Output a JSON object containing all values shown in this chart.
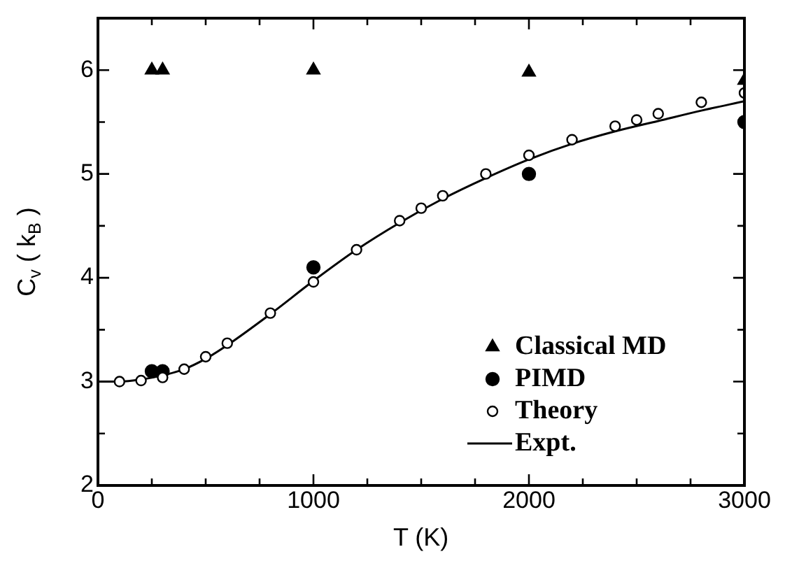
{
  "chart_data": {
    "type": "scatter",
    "xlabel": "T (K)",
    "ylabel": "C$_{v}$ ( k$_{B}$ )",
    "xlim": [
      0,
      3000
    ],
    "ylim": [
      2,
      6.5
    ],
    "xticks": [
      0,
      {
        "value": 250,
        "label": null
      },
      {
        "value": 500,
        "label": null
      },
      {
        "value": 750,
        "label": null
      },
      1000,
      {
        "value": 1250,
        "label": null
      },
      {
        "value": 1500,
        "label": null
      },
      {
        "value": 1750,
        "label": null
      },
      2000,
      {
        "value": 2250,
        "label": null
      },
      {
        "value": 2500,
        "label": null
      },
      {
        "value": 2750,
        "label": null
      },
      3000
    ],
    "yticks": [
      2,
      {
        "value": 2.5,
        "label": null
      },
      3,
      {
        "value": 3.5,
        "label": null
      },
      4,
      {
        "value": 4.5,
        "label": null
      },
      5,
      {
        "value": 5.5,
        "label": null
      },
      6
    ],
    "grid": false,
    "legend": "bottom right",
    "series": [
      {
        "name": "Classical MD",
        "marker": "triangle",
        "color": "#000000",
        "x": [
          250,
          300,
          1000,
          2000,
          3000
        ],
        "values": [
          6.0,
          6.0,
          6.0,
          5.98,
          5.9
        ]
      },
      {
        "name": "PIMD",
        "marker": "circle",
        "color": "#000000",
        "x": [
          250,
          300,
          1000,
          2000,
          3000
        ],
        "values": [
          3.1,
          3.1,
          4.1,
          5.0,
          5.5
        ]
      },
      {
        "name": "Theory",
        "marker": "circle",
        "color": "#ffffff",
        "x": [
          100,
          200,
          300,
          400,
          500,
          600,
          800,
          1000,
          1200,
          1400,
          1500,
          1600,
          1800,
          2000,
          2200,
          2400,
          2500,
          2600,
          2800,
          3000
        ],
        "values": [
          3.0,
          3.01,
          3.04,
          3.12,
          3.24,
          3.37,
          3.66,
          3.96,
          4.27,
          4.55,
          4.67,
          4.79,
          5.0,
          5.18,
          5.33,
          5.46,
          5.52,
          5.58,
          5.69,
          5.78
        ]
      },
      {
        "name": "Expt.",
        "type": "line",
        "marker": "none",
        "line_style": "solid",
        "color": "#000000",
        "x": [
          0,
          100,
          200,
          300,
          400,
          500,
          600,
          800,
          1000,
          1200,
          1400,
          1600,
          1800,
          2000,
          2200,
          2400,
          2600,
          2800,
          3000
        ],
        "values": [
          3.0,
          3.0,
          3.02,
          3.06,
          3.12,
          3.22,
          3.35,
          3.65,
          3.97,
          4.27,
          4.53,
          4.76,
          4.96,
          5.14,
          5.29,
          5.41,
          5.51,
          5.61,
          5.7
        ]
      }
    ]
  }
}
